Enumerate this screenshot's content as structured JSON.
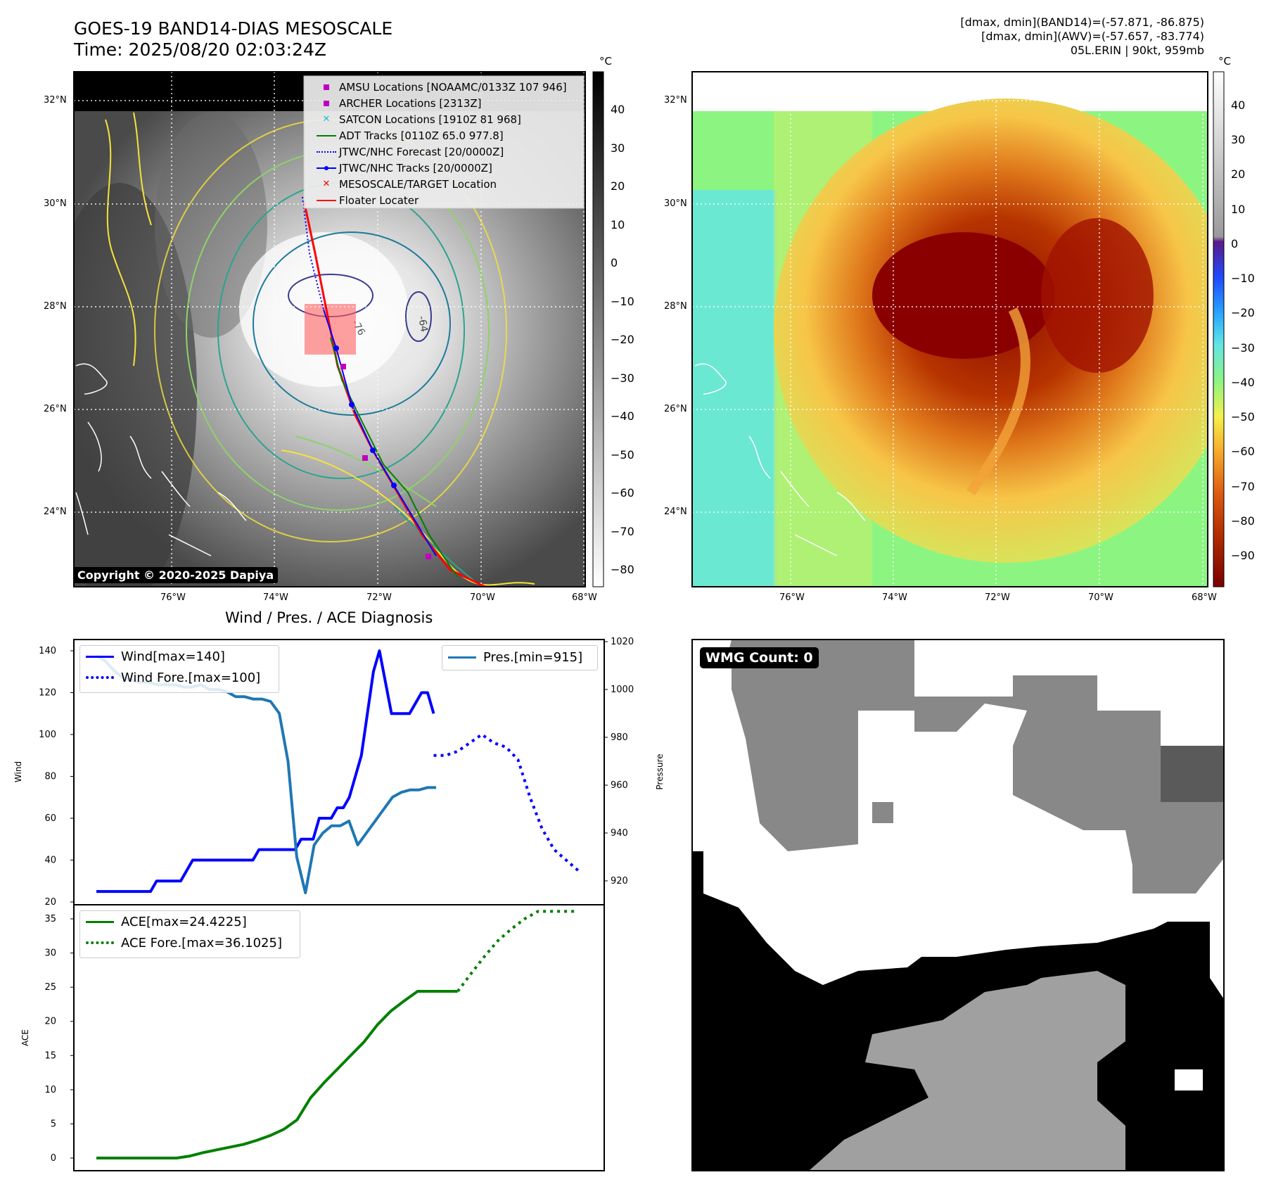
{
  "header": {
    "title": "GOES-19 BAND14-DIAS MESOSCALE",
    "time": "Time: 2025/08/20 02:03:24Z",
    "info_line1": "[dmax, dmin](BAND14)=(-57.871, -86.875)",
    "info_line2": "[dmax, dmin](AWV)=(-57.657, -83.774)",
    "info_line3": "05L.ERIN | 90kt, 959mb"
  },
  "maps": {
    "lat_labels": [
      "32°N",
      "30°N",
      "28°N",
      "26°N",
      "24°N"
    ],
    "lon_labels": [
      "76°W",
      "74°W",
      "72°W",
      "70°W",
      "68°W"
    ],
    "copyright": "Copyright © 2020-2025 Dapiya",
    "contour_labels": [
      "-64",
      "-76"
    ],
    "legend": [
      {
        "label": "AMSU Locations [NOAAMC/0133Z 107 946]",
        "color": "#c000c0",
        "marker": "square"
      },
      {
        "label": "ARCHER Locations [2313Z]",
        "color": "#c000c0",
        "marker": "square"
      },
      {
        "label": "SATCON Locations [1910Z 81 968]",
        "color": "#17becf",
        "marker": "x"
      },
      {
        "label": "ADT Tracks [0110Z 65.0 977.8]",
        "color": "#008000",
        "marker": "line"
      },
      {
        "label": "JTWC/NHC Forecast [20/0000Z]",
        "color": "#0000ff",
        "marker": "dotted"
      },
      {
        "label": "JTWC/NHC Tracks [20/0000Z]",
        "color": "#0000ff",
        "marker": "line-dot"
      },
      {
        "label": "MESOSCALE/TARGET Location",
        "color": "#ff0000",
        "marker": "x"
      },
      {
        "label": "Floater Locater",
        "color": "#ff0000",
        "marker": "line"
      }
    ],
    "left_colorbar": {
      "unit": "°C",
      "ticks": [
        "40",
        "30",
        "20",
        "10",
        "0",
        "−10",
        "−20",
        "−30",
        "−40",
        "−50",
        "−60",
        "−70",
        "−80"
      ]
    },
    "right_colorbar": {
      "unit": "°C",
      "ticks": [
        "40",
        "30",
        "20",
        "10",
        "0",
        "−10",
        "−20",
        "−30",
        "−40",
        "−50",
        "−60",
        "−70",
        "−80",
        "−90"
      ]
    }
  },
  "diagnosis": {
    "title": "Wind / Pres. / ACE Diagnosis",
    "wind_ylabel": "Wind",
    "pres_ylabel": "Pressure",
    "ace_ylabel": "ACE",
    "wind_ticks": [
      "140",
      "120",
      "100",
      "80",
      "60",
      "40",
      "20"
    ],
    "pres_ticks": [
      "1020",
      "1000",
      "980",
      "960",
      "940",
      "920"
    ],
    "ace_ticks": [
      "35",
      "30",
      "25",
      "20",
      "15",
      "10",
      "5",
      "0"
    ],
    "legend_wind": "Wind[max=140]",
    "legend_wind_fore": "Wind Fore.[max=100]",
    "legend_pres": "Pres.[min=915]",
    "legend_ace": "ACE[max=24.4225]",
    "legend_ace_fore": "ACE Fore.[max=36.1025]"
  },
  "wmg": {
    "label": "WMG Count: 0"
  },
  "colors": {
    "wind": "#0000ff",
    "pressure": "#1f77b4",
    "ace": "#008000",
    "floater": "#ff0000"
  },
  "chart_data": [
    {
      "type": "line",
      "ylabel": "Wind",
      "ylim": [
        20,
        145
      ],
      "x": [
        0,
        1,
        2,
        3,
        4,
        5,
        6,
        7,
        8,
        9,
        10,
        11,
        12,
        13,
        14,
        15,
        16,
        17,
        18,
        19,
        20,
        21,
        22,
        23,
        24,
        25,
        26,
        27,
        28,
        29,
        30,
        31,
        32,
        33,
        34,
        35,
        36,
        37,
        38,
        39,
        40,
        41,
        42,
        43,
        44,
        45,
        46,
        47,
        48,
        49,
        50,
        51,
        52,
        53,
        54,
        55,
        56,
        57,
        58,
        59,
        60,
        61,
        62,
        63,
        64,
        65,
        66,
        67,
        68,
        69,
        70,
        71,
        72,
        73,
        74,
        75,
        76,
        77,
        78,
        79
      ],
      "series": [
        {
          "name": "Wind[max=140]",
          "x": [
            0,
            1,
            2,
            3,
            4,
            5,
            6,
            7,
            8,
            9,
            10,
            11,
            12,
            13,
            14,
            15,
            16,
            17,
            18,
            19,
            20,
            21,
            22,
            23,
            24,
            25,
            26,
            27,
            28,
            29,
            30,
            31,
            32,
            33,
            34,
            35,
            36,
            37,
            38,
            39,
            40,
            41,
            42,
            43,
            44,
            45,
            46,
            47,
            48,
            49,
            50,
            51,
            52,
            53,
            54,
            55,
            56
          ],
          "values": [
            25,
            25,
            25,
            25,
            25,
            25,
            25,
            25,
            25,
            25,
            30,
            30,
            30,
            30,
            30,
            35,
            40,
            40,
            40,
            40,
            40,
            40,
            40,
            40,
            40,
            40,
            40,
            45,
            45,
            45,
            45,
            45,
            45,
            45,
            50,
            50,
            50,
            60,
            60,
            60,
            65,
            65,
            70,
            80,
            90,
            110,
            130,
            140,
            125,
            110,
            110,
            110,
            110,
            115,
            120,
            120,
            110
          ]
        },
        {
          "name": "Wind Fore.[max=100]",
          "x": [
            56,
            58,
            60,
            62,
            64,
            66,
            68,
            70,
            72,
            74,
            76,
            78,
            80
          ],
          "values": [
            90,
            90,
            92,
            96,
            100,
            96,
            94,
            88,
            70,
            55,
            45,
            40,
            35
          ]
        }
      ]
    },
    {
      "type": "line",
      "ylabel": "Pressure",
      "ylim": [
        910,
        1020
      ],
      "series": [
        {
          "name": "Pres.[min=915]",
          "x": [
            0,
            2,
            4,
            6,
            8,
            10,
            12,
            14,
            16,
            18,
            20,
            22,
            24,
            26,
            28,
            30,
            32,
            34,
            36,
            38,
            40,
            42,
            44,
            46,
            48,
            50,
            52,
            54,
            56,
            58,
            60,
            62,
            64,
            66,
            68,
            70,
            72,
            74,
            76,
            78
          ],
          "values": [
            1014,
            1012,
            1008,
            1005,
            1004,
            1003,
            1003,
            1002,
            1002,
            1002,
            1001,
            1001,
            1002,
            1000,
            1000,
            999,
            997,
            997,
            996,
            996,
            995,
            990,
            970,
            930,
            915,
            935,
            940,
            943,
            943,
            945,
            935,
            940,
            945,
            950,
            955,
            957,
            958,
            958,
            959,
            959
          ]
        }
      ]
    },
    {
      "type": "line",
      "ylabel": "ACE",
      "ylim": [
        -1,
        37
      ],
      "series": [
        {
          "name": "ACE[max=24.4225]",
          "x": [
            0,
            4,
            8,
            12,
            16,
            20,
            24,
            28,
            32,
            36,
            40,
            44,
            48,
            52,
            56,
            60,
            64,
            68,
            72,
            76,
            80,
            84,
            88,
            92,
            96,
            100,
            104,
            108
          ],
          "values": [
            0,
            0,
            0,
            0,
            0,
            0,
            0,
            0.3,
            0.8,
            1.2,
            1.6,
            2.0,
            2.6,
            3.3,
            4.2,
            5.6,
            8.8,
            11.0,
            13.0,
            15.0,
            17.0,
            19.5,
            21.5,
            23.0,
            24.4,
            24.4,
            24.4,
            24.4
          ]
        },
        {
          "name": "ACE Fore.[max=36.1025]",
          "x": [
            108,
            112,
            116,
            120,
            124,
            128,
            132,
            136,
            140,
            144
          ],
          "values": [
            24.4,
            27.0,
            29.5,
            31.8,
            33.5,
            35.0,
            36.1,
            36.1,
            36.1,
            36.1
          ]
        }
      ]
    }
  ]
}
